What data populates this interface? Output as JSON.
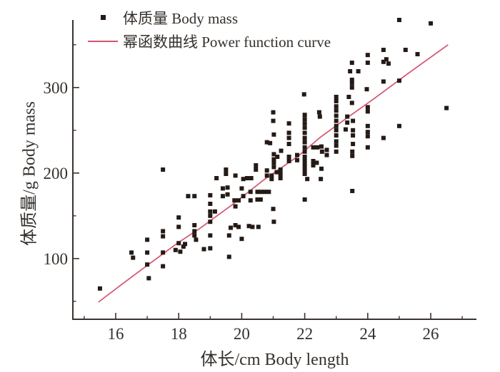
{
  "chart_data": {
    "type": "scatter",
    "title": "",
    "xlabel": "体长/cm Body length",
    "ylabel": "体质量/g Body mass",
    "xlim": [
      14.64,
      27.45
    ],
    "ylim": [
      29,
      379
    ],
    "x_major_ticks": [
      16,
      18,
      20,
      22,
      24,
      26
    ],
    "x_minor_ticks": [
      15,
      17,
      19,
      21,
      23,
      25,
      27
    ],
    "y_major_ticks": [
      100,
      200,
      300
    ],
    "y_minor_ticks": [
      50,
      150,
      250,
      350
    ],
    "grid": false,
    "legend_position": "top-left",
    "colors": {
      "points": "#241a16",
      "curve": "#d5536f",
      "axis": "#3b3330",
      "text": "#35302c"
    },
    "series": [
      {
        "name": "体质量 Body mass",
        "type": "scatter",
        "marker": "square",
        "color": "#241a16",
        "points": [
          [
            15.5,
            65
          ],
          [
            16.5,
            107
          ],
          [
            16.55,
            101
          ],
          [
            17.0,
            122
          ],
          [
            17.0,
            107
          ],
          [
            17.0,
            93
          ],
          [
            17.05,
            77
          ],
          [
            17.5,
            204
          ],
          [
            17.5,
            132
          ],
          [
            17.5,
            126
          ],
          [
            17.5,
            107
          ],
          [
            17.5,
            91
          ],
          [
            17.9,
            110
          ],
          [
            18.0,
            148
          ],
          [
            18.0,
            137
          ],
          [
            18.0,
            118
          ],
          [
            18.05,
            108
          ],
          [
            18.15,
            114
          ],
          [
            18.2,
            117
          ],
          [
            18.3,
            173
          ],
          [
            18.5,
            173
          ],
          [
            18.5,
            139
          ],
          [
            18.5,
            132
          ],
          [
            18.5,
            127
          ],
          [
            18.55,
            122
          ],
          [
            18.8,
            111
          ],
          [
            19.0,
            112
          ],
          [
            19.0,
            174
          ],
          [
            19.0,
            164
          ],
          [
            19.0,
            155
          ],
          [
            19.0,
            150
          ],
          [
            19.0,
            143
          ],
          [
            19.0,
            127
          ],
          [
            19.15,
            155
          ],
          [
            19.2,
            194
          ],
          [
            19.4,
            173
          ],
          [
            19.4,
            182
          ],
          [
            19.5,
            204
          ],
          [
            19.5,
            199
          ],
          [
            19.55,
            183
          ],
          [
            19.55,
            175
          ],
          [
            19.6,
            102
          ],
          [
            19.6,
            127
          ],
          [
            19.65,
            136
          ],
          [
            19.8,
            197
          ],
          [
            19.77,
            168
          ],
          [
            19.8,
            161
          ],
          [
            19.9,
            168
          ],
          [
            19.8,
            139
          ],
          [
            19.9,
            137
          ],
          [
            20.0,
            182
          ],
          [
            20.05,
            173
          ],
          [
            20.0,
            123
          ],
          [
            20.05,
            193
          ],
          [
            20.17,
            194
          ],
          [
            20.3,
            194
          ],
          [
            20.28,
            178
          ],
          [
            20.28,
            168
          ],
          [
            20.23,
            138
          ],
          [
            20.34,
            137
          ],
          [
            20.45,
            209
          ],
          [
            20.45,
            204
          ],
          [
            20.5,
            178
          ],
          [
            20.62,
            178
          ],
          [
            20.74,
            178
          ],
          [
            20.86,
            178
          ],
          [
            20.5,
            169
          ],
          [
            20.6,
            169
          ],
          [
            20.53,
            137
          ],
          [
            20.8,
            203
          ],
          [
            20.8,
            197
          ],
          [
            20.95,
            197
          ],
          [
            20.95,
            193
          ],
          [
            20.8,
            236
          ],
          [
            20.9,
            235
          ],
          [
            21.0,
            271
          ],
          [
            21.0,
            261
          ],
          [
            21.02,
            245
          ],
          [
            21.02,
            222
          ],
          [
            21.02,
            216
          ],
          [
            21.13,
            219
          ],
          [
            21.02,
            212
          ],
          [
            21.02,
            207
          ],
          [
            21.11,
            201
          ],
          [
            21.0,
            158
          ],
          [
            21.02,
            143
          ],
          [
            21.25,
            226
          ],
          [
            21.23,
            204
          ],
          [
            21.23,
            199
          ],
          [
            21.23,
            194
          ],
          [
            21.5,
            258
          ],
          [
            21.5,
            247
          ],
          [
            21.5,
            241
          ],
          [
            21.5,
            234
          ],
          [
            21.5,
            219
          ],
          [
            21.5,
            214
          ],
          [
            21.76,
            221
          ],
          [
            21.76,
            215
          ],
          [
            21.98,
            292
          ],
          [
            22.0,
            268
          ],
          [
            22.0,
            263
          ],
          [
            22.0,
            258
          ],
          [
            22.0,
            253
          ],
          [
            22.0,
            247
          ],
          [
            22.0,
            241
          ],
          [
            22.0,
            236
          ],
          [
            22.0,
            230
          ],
          [
            22.0,
            225
          ],
          [
            22.0,
            219
          ],
          [
            22.0,
            214
          ],
          [
            22.0,
            209
          ],
          [
            22.0,
            204
          ],
          [
            22.0,
            199
          ],
          [
            22.0,
            169
          ],
          [
            22.08,
            193
          ],
          [
            22.27,
            230
          ],
          [
            22.4,
            230
          ],
          [
            22.27,
            214
          ],
          [
            22.38,
            212
          ],
          [
            22.27,
            209
          ],
          [
            22.46,
            271
          ],
          [
            22.48,
            266
          ],
          [
            22.53,
            231
          ],
          [
            22.55,
            225
          ],
          [
            22.53,
            205
          ],
          [
            22.51,
            193
          ],
          [
            22.7,
            227
          ],
          [
            22.7,
            221
          ],
          [
            23.0,
            289
          ],
          [
            23.0,
            284
          ],
          [
            23.0,
            278
          ],
          [
            23.0,
            273
          ],
          [
            23.0,
            267
          ],
          [
            23.0,
            261
          ],
          [
            23.0,
            255
          ],
          [
            23.0,
            250
          ],
          [
            23.0,
            244
          ],
          [
            23.0,
            237
          ],
          [
            23.0,
            232
          ],
          [
            23.0,
            225
          ],
          [
            23.4,
            289
          ],
          [
            23.35,
            266
          ],
          [
            23.35,
            259
          ],
          [
            23.3,
            251
          ],
          [
            23.44,
            319
          ],
          [
            23.5,
            329
          ],
          [
            23.5,
            309
          ],
          [
            23.5,
            305
          ],
          [
            23.5,
            300
          ],
          [
            23.5,
            282
          ],
          [
            23.53,
            261
          ],
          [
            23.53,
            250
          ],
          [
            23.53,
            244
          ],
          [
            23.53,
            234
          ],
          [
            23.51,
            225
          ],
          [
            23.51,
            220
          ],
          [
            23.51,
            179
          ],
          [
            23.7,
            319
          ],
          [
            23.97,
            298
          ],
          [
            24.0,
            338
          ],
          [
            24.0,
            329
          ],
          [
            24.0,
            277
          ],
          [
            24.0,
            272
          ],
          [
            24.0,
            255
          ],
          [
            24.0,
            248
          ],
          [
            24.0,
            243
          ],
          [
            24.0,
            230
          ],
          [
            24.5,
            344
          ],
          [
            24.5,
            330
          ],
          [
            24.5,
            307
          ],
          [
            24.5,
            241
          ],
          [
            24.59,
            333
          ],
          [
            24.66,
            328
          ],
          [
            25.0,
            379
          ],
          [
            25.0,
            308
          ],
          [
            25.0,
            255
          ],
          [
            25.2,
            344
          ],
          [
            25.58,
            339
          ],
          [
            26.0,
            375
          ],
          [
            26.5,
            276
          ]
        ]
      },
      {
        "name": "幂函数曲线 Power function curve",
        "type": "line",
        "color": "#d5536f",
        "points": [
          [
            15.45,
            49
          ],
          [
            16.2,
            70
          ],
          [
            17.0,
            92
          ],
          [
            18.0,
            119
          ],
          [
            18.7,
            136
          ],
          [
            19.7,
            163
          ],
          [
            20.7,
            192
          ],
          [
            21.8,
            220
          ],
          [
            22.5,
            242
          ],
          [
            23.4,
            266
          ],
          [
            24.2,
            287
          ],
          [
            25.3,
            317
          ],
          [
            26.55,
            350
          ]
        ]
      }
    ]
  }
}
